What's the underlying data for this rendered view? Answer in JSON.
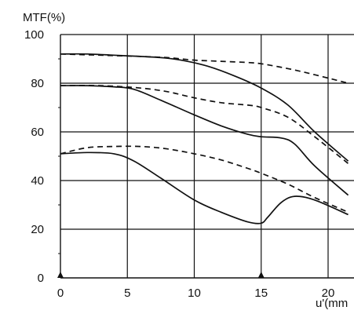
{
  "chart_data": {
    "type": "line",
    "ylabel": "MTF(%)",
    "xlabel": "u'(mm",
    "xlim": [
      0,
      21.5
    ],
    "ylim": [
      0,
      100
    ],
    "grid": true,
    "x_ticks": [
      "0",
      "5",
      "10",
      "15",
      "20"
    ],
    "y_ticks": [
      "0",
      "20",
      "40",
      "60",
      "80",
      "100"
    ],
    "markers_x": [
      0,
      15
    ],
    "series": [
      {
        "style": "solid",
        "x": [
          0,
          2,
          4,
          6,
          7.5,
          9,
          11,
          13,
          15,
          17,
          19,
          21.5
        ],
        "y": [
          92,
          92,
          91.5,
          91,
          90.5,
          89.5,
          87,
          83,
          78,
          71,
          60,
          48
        ]
      },
      {
        "style": "dashed",
        "x": [
          0,
          3,
          6,
          8,
          10,
          12,
          14,
          15,
          17,
          19,
          21.5
        ],
        "y": [
          92,
          91.5,
          91,
          90.5,
          89.5,
          89,
          88.5,
          88,
          86,
          83.5,
          80
        ]
      },
      {
        "style": "solid",
        "x": [
          0,
          2,
          4,
          5.5,
          7.5,
          10,
          12,
          14,
          15,
          16.5,
          17.5,
          19,
          21.5
        ],
        "y": [
          79,
          79,
          78.5,
          77.5,
          73,
          67,
          62.5,
          59,
          58,
          57.5,
          55,
          46,
          34
        ]
      },
      {
        "style": "dashed",
        "x": [
          0,
          3,
          6,
          8,
          10,
          12,
          14,
          15,
          17,
          19,
          21.5
        ],
        "y": [
          79,
          79,
          78,
          76.5,
          74,
          72,
          71,
          70,
          66,
          58,
          47
        ]
      },
      {
        "style": "solid",
        "x": [
          0,
          2,
          4,
          5.5,
          7.5,
          10,
          12,
          14,
          15,
          15.5,
          16.5,
          17.5,
          19,
          21.5
        ],
        "y": [
          51,
          51.5,
          51,
          48,
          41,
          32,
          27,
          23,
          22.5,
          25,
          31,
          33.5,
          32,
          26
        ]
      },
      {
        "style": "dashed",
        "x": [
          0,
          2,
          4,
          6,
          8,
          10,
          12,
          14,
          15,
          17,
          19,
          21.5
        ],
        "y": [
          51,
          53.5,
          54,
          54,
          53,
          51,
          48.5,
          45,
          43,
          38.5,
          33,
          27
        ]
      }
    ]
  }
}
